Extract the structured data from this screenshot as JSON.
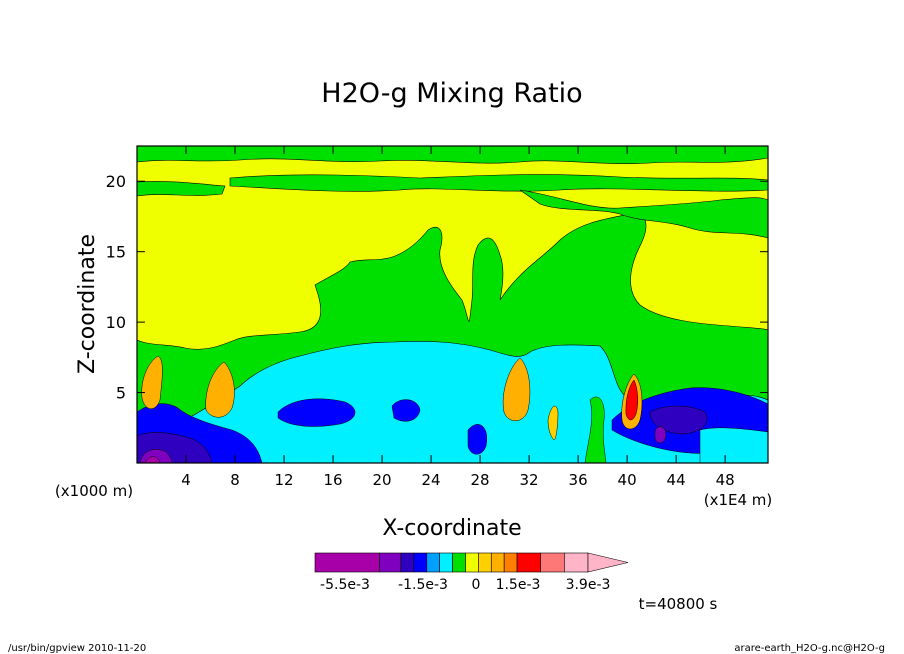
{
  "chart_data": {
    "type": "heatmap",
    "title": "H2O-g Mixing Ratio",
    "xlabel": "X-coordinate",
    "ylabel": "Z-coordinate",
    "x_scale_note": "(x1E4 m)",
    "y_scale_note": "(x1000 m)",
    "xlim": [
      0,
      51.5
    ],
    "ylim": [
      0,
      22.5
    ],
    "x_ticks": [
      4,
      8,
      12,
      16,
      20,
      24,
      28,
      32,
      36,
      40,
      44,
      48
    ],
    "y_ticks": [
      5,
      10,
      15,
      20
    ],
    "time_label": "t=40800 s",
    "colorbar": {
      "tick_labels": [
        "-5.5e-3",
        "-1.5e-3",
        "0",
        "1.5e-3",
        "3.9e-3"
      ],
      "colors": [
        "#a800a8",
        "#7f00bf",
        "#2f00bf",
        "#0000ff",
        "#00a0ff",
        "#00f0ff",
        "#00e000",
        "#f0ff00",
        "#ffd000",
        "#ffb000",
        "#ff8000",
        "#ff0000",
        "#ff7878",
        "#ffb4c8"
      ],
      "relative_widths": [
        3,
        1,
        0.6,
        0.6,
        0.6,
        0.6,
        0.6,
        0.6,
        0.6,
        0.6,
        0.6,
        1.1,
        1.1,
        1.1
      ]
    },
    "levels": {
      "background": {
        "value": "yellow",
        "color": "#f0ff00"
      },
      "regions": [
        {
          "name": "green-layer",
          "color": "#00e000"
        },
        {
          "name": "cyan-layer",
          "color": "#00f0ff"
        },
        {
          "name": "light-blue-patches",
          "color": "#00a0ff"
        },
        {
          "name": "blue-patches",
          "color": "#0000ff"
        },
        {
          "name": "dark-blue-patches",
          "color": "#2f00bf"
        },
        {
          "name": "purple-patches",
          "color": "#7f00bf"
        },
        {
          "name": "magenta-patches",
          "color": "#a800a8"
        },
        {
          "name": "orange-cells",
          "color": "#ffb000"
        },
        {
          "name": "red-cells",
          "color": "#ff0000"
        }
      ]
    }
  },
  "footer": {
    "left": "/usr/bin/gpview   2010-11-20",
    "right": "arare-earth_H2O-g.nc@H2O-g"
  }
}
